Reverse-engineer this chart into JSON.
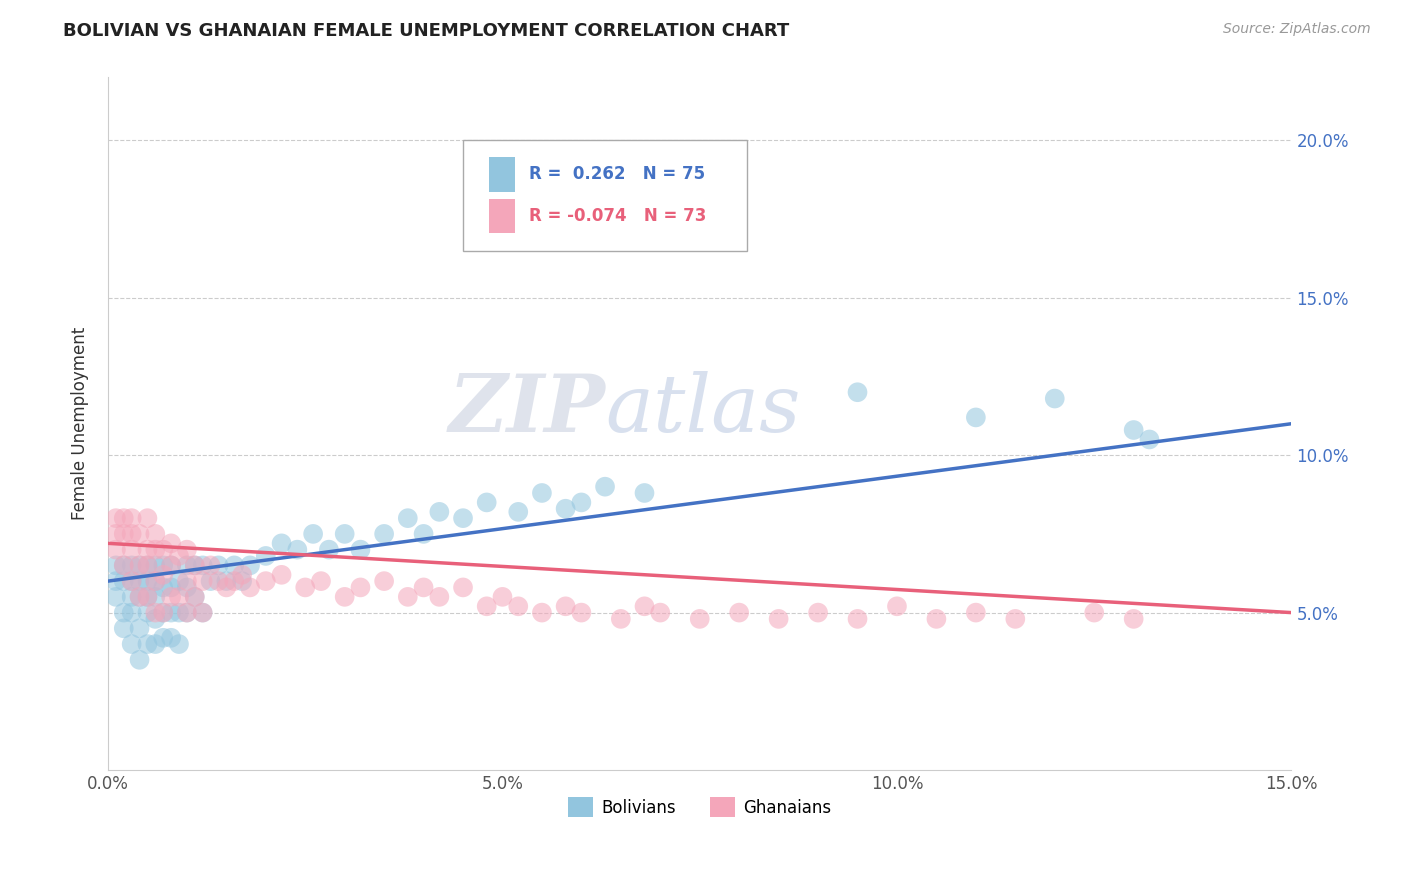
{
  "title": "BOLIVIAN VS GHANAIAN FEMALE UNEMPLOYMENT CORRELATION CHART",
  "source": "Source: ZipAtlas.com",
  "ylabel": "Female Unemployment",
  "x_min": 0.0,
  "x_max": 0.15,
  "y_min": 0.0,
  "y_max": 0.22,
  "x_ticks": [
    0.0,
    0.05,
    0.1,
    0.15
  ],
  "x_tick_labels": [
    "0.0%",
    "5.0%",
    "10.0%",
    "15.0%"
  ],
  "y_ticks": [
    0.05,
    0.1,
    0.15,
    0.2
  ],
  "y_tick_labels": [
    "5.0%",
    "10.0%",
    "15.0%",
    "20.0%"
  ],
  "bolivian_color": "#92C5DE",
  "ghanaian_color": "#F4A6BA",
  "trend_bolivian_color": "#4472C4",
  "trend_ghanaian_color": "#E8607A",
  "R_bolivian": 0.262,
  "N_bolivian": 75,
  "R_ghanaian": -0.074,
  "N_ghanaian": 73,
  "watermark_zip": "ZIP",
  "watermark_atlas": "atlas",
  "legend_label_bolivians": "Bolivians",
  "legend_label_ghanaians": "Ghanaians",
  "bolivian_x": [
    0.001,
    0.001,
    0.001,
    0.002,
    0.002,
    0.002,
    0.002,
    0.003,
    0.003,
    0.003,
    0.003,
    0.003,
    0.004,
    0.004,
    0.004,
    0.004,
    0.004,
    0.005,
    0.005,
    0.005,
    0.005,
    0.005,
    0.006,
    0.006,
    0.006,
    0.006,
    0.006,
    0.007,
    0.007,
    0.007,
    0.007,
    0.008,
    0.008,
    0.008,
    0.008,
    0.009,
    0.009,
    0.009,
    0.01,
    0.01,
    0.01,
    0.011,
    0.011,
    0.012,
    0.012,
    0.013,
    0.014,
    0.015,
    0.016,
    0.017,
    0.018,
    0.02,
    0.022,
    0.024,
    0.026,
    0.028,
    0.03,
    0.032,
    0.035,
    0.038,
    0.04,
    0.042,
    0.045,
    0.048,
    0.052,
    0.055,
    0.058,
    0.06,
    0.063,
    0.068,
    0.095,
    0.11,
    0.12,
    0.13,
    0.132
  ],
  "bolivian_y": [
    0.06,
    0.055,
    0.065,
    0.045,
    0.05,
    0.06,
    0.065,
    0.04,
    0.05,
    0.055,
    0.06,
    0.065,
    0.035,
    0.045,
    0.055,
    0.06,
    0.065,
    0.04,
    0.05,
    0.055,
    0.06,
    0.065,
    0.04,
    0.048,
    0.055,
    0.06,
    0.065,
    0.042,
    0.05,
    0.058,
    0.065,
    0.042,
    0.05,
    0.058,
    0.065,
    0.04,
    0.05,
    0.06,
    0.05,
    0.058,
    0.065,
    0.055,
    0.065,
    0.05,
    0.065,
    0.06,
    0.065,
    0.06,
    0.065,
    0.06,
    0.065,
    0.068,
    0.072,
    0.07,
    0.075,
    0.07,
    0.075,
    0.07,
    0.075,
    0.08,
    0.075,
    0.082,
    0.08,
    0.085,
    0.082,
    0.088,
    0.083,
    0.085,
    0.09,
    0.088,
    0.12,
    0.112,
    0.118,
    0.108,
    0.105
  ],
  "ghanaian_x": [
    0.001,
    0.001,
    0.001,
    0.002,
    0.002,
    0.002,
    0.003,
    0.003,
    0.003,
    0.003,
    0.004,
    0.004,
    0.004,
    0.005,
    0.005,
    0.005,
    0.005,
    0.006,
    0.006,
    0.006,
    0.006,
    0.007,
    0.007,
    0.007,
    0.008,
    0.008,
    0.008,
    0.009,
    0.009,
    0.01,
    0.01,
    0.01,
    0.011,
    0.011,
    0.012,
    0.012,
    0.013,
    0.014,
    0.015,
    0.016,
    0.017,
    0.018,
    0.02,
    0.022,
    0.025,
    0.027,
    0.03,
    0.032,
    0.035,
    0.038,
    0.04,
    0.042,
    0.045,
    0.048,
    0.05,
    0.052,
    0.055,
    0.058,
    0.06,
    0.065,
    0.068,
    0.07,
    0.075,
    0.08,
    0.085,
    0.09,
    0.095,
    0.1,
    0.105,
    0.11,
    0.115,
    0.125,
    0.13
  ],
  "ghanaian_y": [
    0.075,
    0.08,
    0.07,
    0.065,
    0.075,
    0.08,
    0.06,
    0.07,
    0.075,
    0.08,
    0.055,
    0.065,
    0.075,
    0.055,
    0.065,
    0.07,
    0.08,
    0.05,
    0.06,
    0.07,
    0.075,
    0.05,
    0.062,
    0.07,
    0.055,
    0.065,
    0.072,
    0.055,
    0.068,
    0.05,
    0.06,
    0.07,
    0.055,
    0.065,
    0.05,
    0.06,
    0.065,
    0.06,
    0.058,
    0.06,
    0.062,
    0.058,
    0.06,
    0.062,
    0.058,
    0.06,
    0.055,
    0.058,
    0.06,
    0.055,
    0.058,
    0.055,
    0.058,
    0.052,
    0.055,
    0.052,
    0.05,
    0.052,
    0.05,
    0.048,
    0.052,
    0.05,
    0.048,
    0.05,
    0.048,
    0.05,
    0.048,
    0.052,
    0.048,
    0.05,
    0.048,
    0.05,
    0.048
  ],
  "trend_bolivian_x0": 0.0,
  "trend_bolivian_y0": 0.06,
  "trend_bolivian_x1": 0.15,
  "trend_bolivian_y1": 0.11,
  "trend_ghanaian_x0": 0.0,
  "trend_ghanaian_y0": 0.072,
  "trend_ghanaian_x1": 0.15,
  "trend_ghanaian_y1": 0.05
}
